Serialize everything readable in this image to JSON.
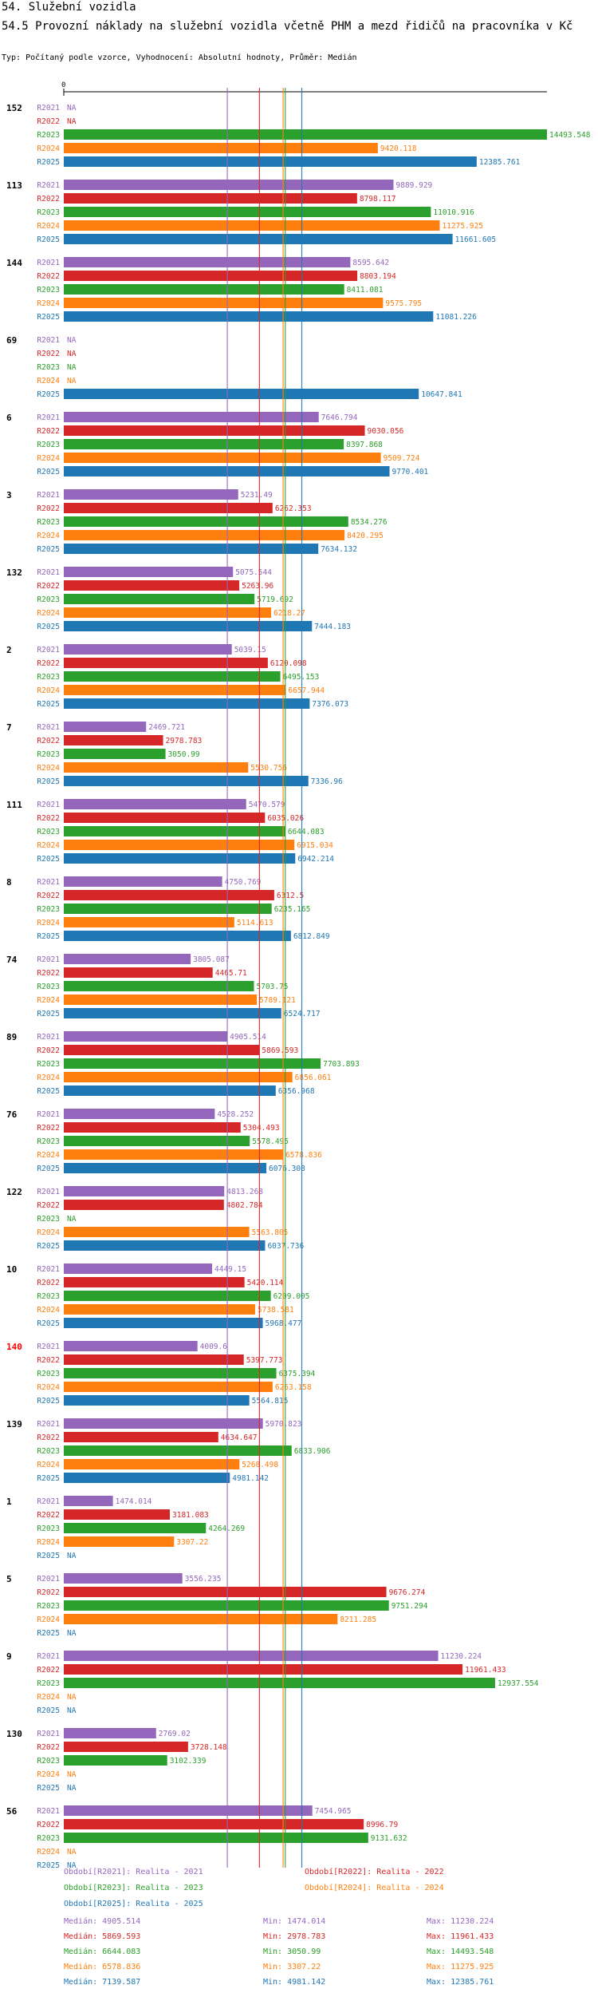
{
  "header": {
    "section": "54. Služební vozidla",
    "title": "54.5 Provozní náklady na služební vozidla včetně PHM a mezd řidičů na pracovníka v Kč",
    "subtitle": "Typ: Počítaný podle vzorce, Vyhodnocení: Absolutní hodnoty, Průměr: Medián"
  },
  "colors": {
    "R2021": "#9467bd",
    "R2022": "#d62728",
    "R2023": "#2ca02c",
    "R2024": "#ff7f0e",
    "R2025": "#1f77b4",
    "highlight_label": "#ff0000"
  },
  "chart_data": {
    "type": "bar",
    "orientation": "horizontal",
    "axis_label": "0",
    "xlim": [
      0,
      14493.548
    ],
    "na_label": "NA",
    "series_names": [
      "R2021",
      "R2022",
      "R2023",
      "R2024",
      "R2025"
    ],
    "groups": [
      {
        "label": "152",
        "values": [
          null,
          null,
          14493.548,
          9420.118,
          12385.761
        ],
        "labels": [
          "NA",
          "NA",
          "14493.548",
          "9420.118",
          "12385.761"
        ]
      },
      {
        "label": "113",
        "values": [
          9889.929,
          8798.117,
          11010.916,
          11275.925,
          11661.605
        ],
        "labels": [
          "9889.929",
          "8798.117",
          "11010.916",
          "11275.925",
          "11661.605"
        ]
      },
      {
        "label": "144",
        "values": [
          8595.642,
          8803.194,
          8411.081,
          9575.795,
          11081.226
        ],
        "labels": [
          "8595.642",
          "8803.194",
          "8411.081",
          "9575.795",
          "11081.226"
        ]
      },
      {
        "label": "69",
        "values": [
          null,
          null,
          null,
          null,
          10647.841
        ],
        "labels": [
          "NA",
          "NA",
          "NA",
          "NA",
          "10647.841"
        ]
      },
      {
        "label": "6",
        "values": [
          7646.794,
          9030.056,
          8397.868,
          9509.724,
          9770.401
        ],
        "labels": [
          "7646.794",
          "9030.056",
          "8397.868",
          "9509.724",
          "9770.401"
        ]
      },
      {
        "label": "3",
        "values": [
          5231.49,
          6262.353,
          8534.276,
          8420.295,
          7634.132
        ],
        "labels": [
          "5231.49",
          "6262.353",
          "8534.276",
          "8420.295",
          "7634.132"
        ]
      },
      {
        "label": "132",
        "values": [
          5075.544,
          5263.96,
          5719.692,
          6218.27,
          7444.183
        ],
        "labels": [
          "5075.544",
          "5263.96",
          "5719.692",
          "6218.27",
          "7444.183"
        ]
      },
      {
        "label": "2",
        "values": [
          5039.15,
          6120.098,
          6495.153,
          6657.944,
          7376.073
        ],
        "labels": [
          "5039.15",
          "6120.098",
          "6495.153",
          "6657.944",
          "7376.073"
        ]
      },
      {
        "label": "7",
        "values": [
          2469.721,
          2978.783,
          3050.99,
          5530.756,
          7336.96
        ],
        "labels": [
          "2469.721",
          "2978.783",
          "3050.99",
          "5530.756",
          "7336.96"
        ]
      },
      {
        "label": "111",
        "values": [
          5470.579,
          6035.026,
          6644.083,
          6915.034,
          6942.214
        ],
        "labels": [
          "5470.579",
          "6035.026",
          "6644.083",
          "6915.034",
          "6942.214"
        ]
      },
      {
        "label": "8",
        "values": [
          4750.769,
          6312.5,
          6235.165,
          5114.613,
          6812.849
        ],
        "labels": [
          "4750.769",
          "6312.5",
          "6235.165",
          "5114.613",
          "6812.849"
        ]
      },
      {
        "label": "74",
        "values": [
          3805.087,
          4465.71,
          5703.75,
          5789.121,
          6524.717
        ],
        "labels": [
          "3805.087",
          "4465.71",
          "5703.75",
          "5789.121",
          "6524.717"
        ]
      },
      {
        "label": "89",
        "values": [
          4905.514,
          5869.593,
          7703.893,
          6856.061,
          6356.968
        ],
        "labels": [
          "4905.514",
          "5869.593",
          "7703.893",
          "6856.061",
          "6356.968"
        ]
      },
      {
        "label": "76",
        "values": [
          4528.252,
          5304.493,
          5578.495,
          6578.836,
          6076.308
        ],
        "labels": [
          "4528.252",
          "5304.493",
          "5578.495",
          "6578.836",
          "6076.308"
        ]
      },
      {
        "label": "122",
        "values": [
          4813.268,
          4802.784,
          null,
          5563.805,
          6037.736
        ],
        "labels": [
          "4813.268",
          "4802.784",
          "NA",
          "5563.805",
          "6037.736"
        ]
      },
      {
        "label": "10",
        "values": [
          4449.15,
          5420.114,
          6209.005,
          5738.581,
          5968.477
        ],
        "labels": [
          "4449.15",
          "5420.114",
          "6209.005",
          "5738.581",
          "5968.477"
        ]
      },
      {
        "label": "140",
        "highlight": true,
        "values": [
          4009.6,
          5397.773,
          6375.394,
          6263.158,
          5564.815
        ],
        "labels": [
          "4009.6",
          "5397.773",
          "6375.394",
          "6263.158",
          "5564.815"
        ]
      },
      {
        "label": "139",
        "values": [
          5970.823,
          4634.647,
          6833.906,
          5268.498,
          4981.142
        ],
        "labels": [
          "5970.823",
          "4634.647",
          "6833.906",
          "5268.498",
          "4981.142"
        ]
      },
      {
        "label": "1",
        "values": [
          1474.014,
          3181.083,
          4264.269,
          3307.22,
          null
        ],
        "labels": [
          "1474.014",
          "3181.083",
          "4264.269",
          "3307.22",
          "NA"
        ]
      },
      {
        "label": "5",
        "values": [
          3556.235,
          9676.274,
          9751.294,
          8211.285,
          null
        ],
        "labels": [
          "3556.235",
          "9676.274",
          "9751.294",
          "8211.285",
          "NA"
        ]
      },
      {
        "label": "9",
        "values": [
          11230.224,
          11961.433,
          12937.554,
          null,
          null
        ],
        "labels": [
          "11230.224",
          "11961.433",
          "12937.554",
          "NA",
          "NA"
        ]
      },
      {
        "label": "130",
        "values": [
          2769.02,
          3728.148,
          3102.339,
          null,
          null
        ],
        "labels": [
          "2769.02",
          "3728.148",
          "3102.339",
          "NA",
          "NA"
        ]
      },
      {
        "label": "56",
        "values": [
          7454.965,
          8996.79,
          9131.632,
          null,
          null
        ],
        "labels": [
          "7454.965",
          "8996.79",
          "9131.632",
          "NA",
          "NA"
        ]
      }
    ],
    "median_lines": [
      4905.514,
      5869.593,
      6644.083,
      6578.836,
      7139.587
    ]
  },
  "legend": {
    "periods": [
      "Období[R2021]: Realita - 2021",
      "Období[R2022]: Realita - 2022",
      "Období[R2023]: Realita - 2023",
      "Období[R2024]: Realita - 2024",
      "Období[R2025]: Realita - 2025"
    ],
    "stats": [
      {
        "median": "Medián: 4905.514",
        "min": "Min: 1474.014",
        "max": "Max: 11230.224"
      },
      {
        "median": "Medián: 5869.593",
        "min": "Min: 2978.783",
        "max": "Max: 11961.433"
      },
      {
        "median": "Medián: 6644.083",
        "min": "Min: 3050.99",
        "max": "Max: 14493.548"
      },
      {
        "median": "Medián: 6578.836",
        "min": "Min: 3307.22",
        "max": "Max: 11275.925"
      },
      {
        "median": "Medián: 7139.587",
        "min": "Min: 4981.142",
        "max": "Max: 12385.761"
      }
    ]
  }
}
